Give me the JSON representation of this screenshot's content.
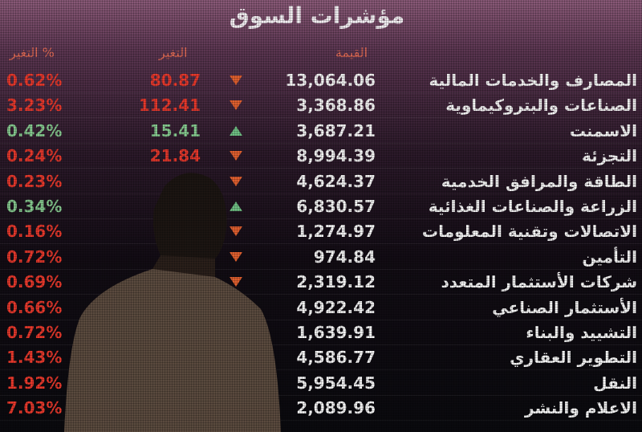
{
  "board": {
    "title": "مؤشرات السوق",
    "headers": {
      "pct": "التغير %",
      "change": "التغير",
      "value": "القيمة"
    },
    "rows": [
      {
        "name": "المصارف والخدمات المالية",
        "value": "13,064.06",
        "change": "80.87",
        "pct": "0.62%",
        "dir": "down"
      },
      {
        "name": "الصناعات والبتروكيماوية",
        "value": "3,368.86",
        "change": "112.41",
        "pct": "3.23%",
        "dir": "down"
      },
      {
        "name": "الاسمنت",
        "value": "3,687.21",
        "change": "15.41",
        "pct": "0.42%",
        "dir": "up"
      },
      {
        "name": "التجزئة",
        "value": "8,994.39",
        "change": "21.84",
        "pct": "0.24%",
        "dir": "down"
      },
      {
        "name": "الطاقة والمرافق الخدمية",
        "value": "4,624.37",
        "pct": "0.23%",
        "dir": "down"
      },
      {
        "name": "الزراعة والصناعات الغذائية",
        "value": "6,830.57",
        "pct": "0.34%",
        "dir": "up"
      },
      {
        "name": "الاتصالات وتقنية المعلومات",
        "value": "1,274.97",
        "pct": "0.16%",
        "dir": "down"
      },
      {
        "name": "التأمين",
        "value": "974.84",
        "pct": "0.72%",
        "dir": "down"
      },
      {
        "name": "شركات الأستثمار المتعدد",
        "value": "2,319.12",
        "pct": "0.69%",
        "dir": "down"
      },
      {
        "name": "الأستثمار الصناعي",
        "value": "4,922.42",
        "pct": "0.66%"
      },
      {
        "name": "التشييد والبناء",
        "value": "1,639.91",
        "pct": "0.72%"
      },
      {
        "name": "التطوير العقاري",
        "value": "4,586.77",
        "pct": "1.43%"
      },
      {
        "name": "النقل",
        "value": "5,954.45",
        "pct": "1.92%"
      },
      {
        "name": "الاعلام والنشر",
        "value": "2,089.96",
        "pct": "7.03%"
      }
    ]
  }
}
